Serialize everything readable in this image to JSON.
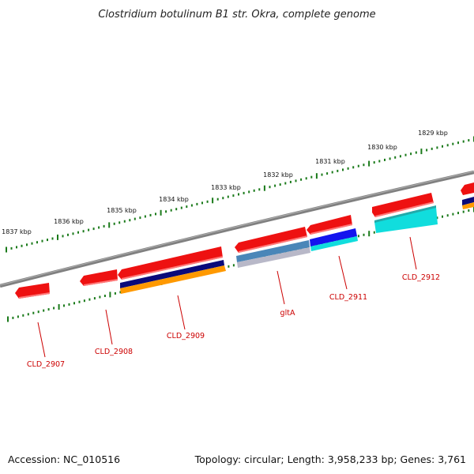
{
  "title": "Clostridium botulinum B1 str. Okra, complete genome",
  "footer": {
    "accession": "Accession: NC_010516",
    "topology": "Topology: circular; Length: 3,958,233 bp; Genes: 3,761"
  },
  "kbp_labels": [
    "1829 kbp",
    "1830 kbp",
    "1831 kbp",
    "1832 kbp",
    "1833 kbp",
    "1834 kbp",
    "1835 kbp",
    "1836 kbp",
    "1837 kbp"
  ],
  "gene_labels": [
    "CLD_2907",
    "CLD_2908",
    "CLD_2909",
    "gltA",
    "CLD_2911",
    "CLD_2912"
  ],
  "colors": {
    "backbone": "#808080",
    "ticks": "#1a7a1a",
    "gene": "#ee1111",
    "label": "#cc0000",
    "navy": "#0a0a7a",
    "orange": "#ff9900",
    "steelblue": "#4a86b8",
    "silver": "#b8b8c8",
    "blue": "#1414ee",
    "cyan": "#11dddd"
  }
}
